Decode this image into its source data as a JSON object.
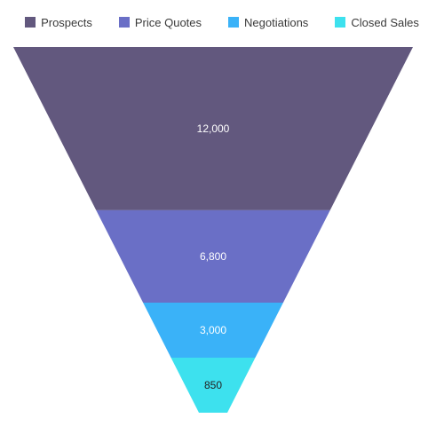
{
  "chart_data": {
    "type": "funnel",
    "title": "",
    "categories": [
      "Prospects",
      "Price Quotes",
      "Negotiations",
      "Closed Sales"
    ],
    "values": [
      12000,
      6800,
      3000,
      850
    ],
    "value_labels": [
      "12,000",
      "6,800",
      "3,000",
      "850"
    ],
    "colors": [
      "#62587e",
      "#6a6fc6",
      "#3ab2f8",
      "#3de1ee"
    ],
    "label_colors": [
      "#ffffff",
      "#ffffff",
      "#ffffff",
      "#222222"
    ],
    "legend_position": "top",
    "grid": false
  }
}
